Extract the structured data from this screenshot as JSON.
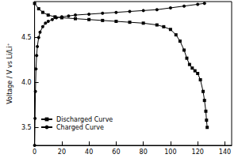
{
  "chart_data": {
    "type": "line",
    "ylabel": "Voltage / V vs Li/Li⁺",
    "xlim": [
      0,
      145
    ],
    "xticks": [
      0,
      20,
      40,
      60,
      80,
      100,
      120,
      140
    ],
    "ylim": [
      3.3,
      4.9
    ],
    "yticks": [
      3.5,
      {
        "value": 4,
        "label": "4.0"
      },
      4.5
    ],
    "grid": false,
    "legend": "lower left",
    "series": [
      {
        "name": "Discharged Curve",
        "color": "#000000",
        "marker": "square",
        "x": [
          0,
          3,
          6,
          10,
          15,
          20,
          30,
          40,
          50,
          60,
          70,
          80,
          90,
          95,
          100,
          104,
          107,
          110,
          112,
          114,
          116,
          118,
          120,
          122,
          124,
          125,
          126,
          126.5,
          127
        ],
        "values": [
          4.88,
          4.82,
          4.78,
          4.75,
          4.73,
          4.72,
          4.71,
          4.7,
          4.69,
          4.68,
          4.67,
          4.66,
          4.64,
          4.62,
          4.59,
          4.53,
          4.46,
          4.36,
          4.27,
          4.2,
          4.16,
          4.13,
          4.1,
          4.03,
          3.9,
          3.8,
          3.68,
          3.58,
          3.5
        ]
      },
      {
        "name": "Charged Curve",
        "color": "#000000",
        "marker": "circle",
        "x": [
          0,
          0.3,
          0.6,
          1,
          1.5,
          2,
          3,
          4,
          6,
          8,
          10,
          13,
          16,
          20,
          25,
          30,
          40,
          50,
          60,
          70,
          80,
          90,
          100,
          110,
          120,
          125
        ],
        "values": [
          3.3,
          3.6,
          3.9,
          4.15,
          4.3,
          4.4,
          4.5,
          4.56,
          4.62,
          4.66,
          4.68,
          4.7,
          4.72,
          4.73,
          4.74,
          4.75,
          4.76,
          4.77,
          4.78,
          4.79,
          4.8,
          4.81,
          4.83,
          4.85,
          4.87,
          4.88
        ]
      }
    ]
  }
}
